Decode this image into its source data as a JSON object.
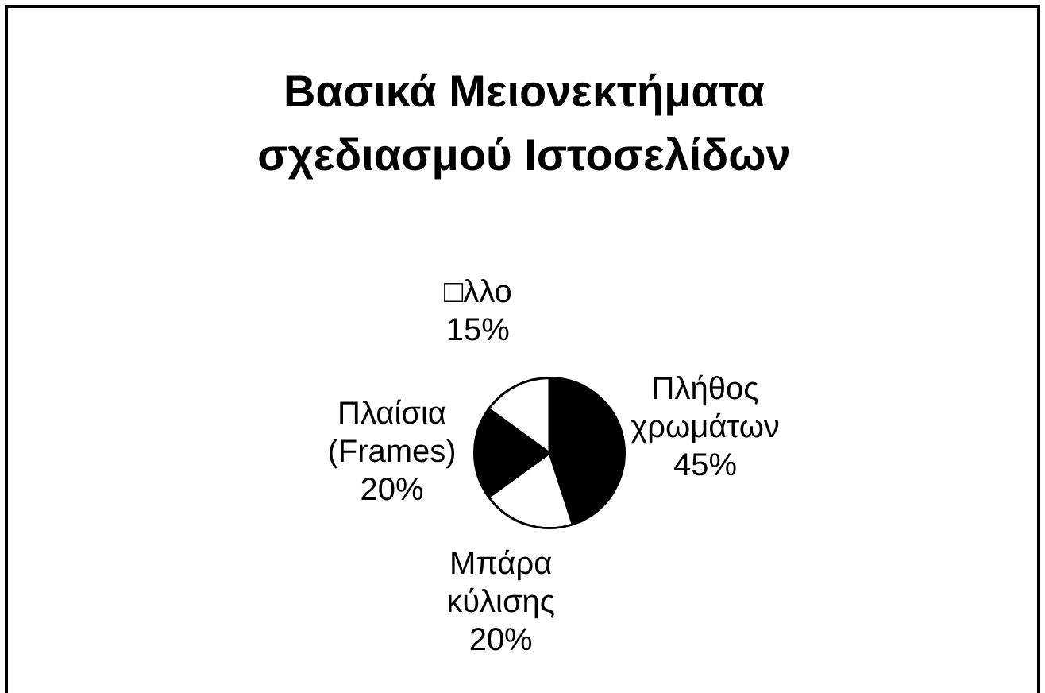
{
  "chart_data": {
    "type": "pie",
    "title": "Βασικά Μειονεκτήματα σχεδιασμού Ιστοσελίδων",
    "categories": [
      "Πλήθος χρωμάτων",
      "Μπάρα κύλισης",
      "Πλαίσια (Frames)",
      "□λλο"
    ],
    "values": [
      45,
      20,
      20,
      15
    ],
    "value_labels": [
      "45%",
      "20%",
      "20%",
      "15%"
    ],
    "colors": [
      "#000000",
      "#ffffff",
      "#000000",
      "#ffffff"
    ],
    "legend": false
  }
}
